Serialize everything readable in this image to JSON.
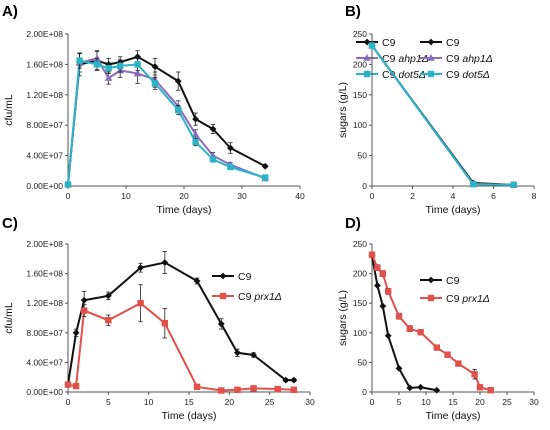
{
  "colors": {
    "black": "#111111",
    "purple": "#8e6bbd",
    "cyan": "#2bb3c8",
    "red": "#e2504c"
  },
  "chart_data": [
    {
      "panel": "A)",
      "type": "line",
      "xlabel": "Time (days)",
      "ylabel": "cfu/mL",
      "xlim": [
        0,
        40
      ],
      "xticks": [
        0,
        10,
        20,
        30,
        40
      ],
      "ylim": [
        0,
        200000000
      ],
      "yticks": [
        0,
        40000000,
        80000000,
        120000000,
        160000000,
        200000000
      ],
      "ytick_labels": [
        "0.00E+00",
        "4.00E+07",
        "8.00E+07",
        "1.20E+08",
        "1.60E+08",
        "2.00E+08"
      ],
      "legend": "top-right",
      "series": [
        {
          "name": "C9",
          "legend_label": "C9",
          "color": "#111111",
          "marker": "diamond",
          "x": [
            0,
            2,
            5,
            7,
            9,
            12,
            15,
            19,
            22,
            25,
            28,
            34
          ],
          "y": [
            2000000,
            160000000,
            165000000,
            160000000,
            163000000,
            170000000,
            157000000,
            138000000,
            88000000,
            75000000,
            50000000,
            26000000
          ],
          "err": [
            0,
            15000000,
            12000000,
            8000000,
            7000000,
            8000000,
            11000000,
            12000000,
            8000000,
            6000000,
            7000000,
            2000000
          ]
        },
        {
          "name": "C9 ahp1Δ",
          "legend_label": "C9 ahp1Δ",
          "color": "#8e6bbd",
          "marker": "triangle",
          "x": [
            0,
            2,
            5,
            7,
            9,
            12,
            15,
            19,
            22,
            25,
            28,
            34
          ],
          "y": [
            2000000,
            162000000,
            168000000,
            142000000,
            152000000,
            148000000,
            140000000,
            105000000,
            68000000,
            40000000,
            28000000,
            10000000
          ],
          "err": [
            0,
            12000000,
            10000000,
            8000000,
            9000000,
            13000000,
            10000000,
            7000000,
            6000000,
            4000000,
            3000000,
            1500000
          ]
        },
        {
          "name": "C9 dot5Δ",
          "legend_label": "C9 dot5Δ",
          "color": "#2bb3c8",
          "marker": "square",
          "x": [
            0,
            2,
            5,
            7,
            9,
            12,
            15,
            19,
            22,
            25,
            28,
            34
          ],
          "y": [
            2000000,
            165000000,
            160000000,
            155000000,
            158000000,
            160000000,
            135000000,
            100000000,
            58000000,
            35000000,
            25000000,
            11000000
          ],
          "err": [
            0,
            10000000,
            8000000,
            7000000,
            8000000,
            8000000,
            8000000,
            6000000,
            5000000,
            3000000,
            2500000,
            1500000
          ]
        }
      ]
    },
    {
      "panel": "B)",
      "type": "line",
      "xlabel": "Time (days)",
      "ylabel": "sugars (g/L)",
      "xlim": [
        0,
        8
      ],
      "xticks": [
        0,
        2,
        4,
        6,
        8
      ],
      "ylim": [
        0,
        250
      ],
      "yticks": [
        0,
        50,
        100,
        150,
        200,
        250
      ],
      "legend": "top-right",
      "series": [
        {
          "name": "C9",
          "legend_label": "C9",
          "color": "#111111",
          "marker": "diamond",
          "x": [
            0,
            5,
            7
          ],
          "y": [
            231,
            5,
            2
          ]
        },
        {
          "name": "C9 ahp1Δ",
          "legend_label": "C9 ahp1Δ",
          "color": "#8e6bbd",
          "marker": "triangle",
          "x": [
            0,
            5,
            7
          ],
          "y": [
            231,
            3,
            2
          ]
        },
        {
          "name": "C9 dot5Δ",
          "legend_label": "C9 dot5Δ",
          "color": "#2bb3c8",
          "marker": "square",
          "x": [
            0,
            5,
            7
          ],
          "y": [
            231,
            3,
            2
          ]
        }
      ]
    },
    {
      "panel": "C)",
      "type": "line",
      "xlabel": "Time (days)",
      "ylabel": "cfu/mL",
      "xlim": [
        0,
        30
      ],
      "xticks": [
        0,
        5,
        10,
        15,
        20,
        25,
        30
      ],
      "ylim": [
        0,
        200000000
      ],
      "yticks": [
        0,
        40000000,
        80000000,
        120000000,
        160000000,
        200000000
      ],
      "ytick_labels": [
        "0.00E+00",
        "4.00E+07",
        "8.00E+07",
        "1.20E+08",
        "1.60E+08",
        "2.00E+08"
      ],
      "legend": "right",
      "series": [
        {
          "name": "C9",
          "legend_label": "C9",
          "color": "#111111",
          "marker": "diamond",
          "x": [
            0,
            1,
            2,
            5,
            9,
            12,
            16,
            19,
            21,
            23,
            27,
            28
          ],
          "y": [
            10000000,
            80000000,
            124000000,
            130000000,
            168000000,
            175000000,
            150000000,
            92000000,
            53000000,
            50000000,
            16000000,
            16000000
          ],
          "err": [
            0,
            5000000,
            12000000,
            5000000,
            6000000,
            15000000,
            4000000,
            7000000,
            5000000,
            3000000,
            2000000,
            2000000
          ]
        },
        {
          "name": "C9 prx1Δ",
          "legend_label": "C9 prx1Δ",
          "color": "#e2504c",
          "marker": "square",
          "x": [
            0,
            1,
            2,
            5,
            9,
            12,
            16,
            19,
            21,
            23,
            26,
            28
          ],
          "y": [
            10000000,
            8000000,
            110000000,
            97000000,
            120000000,
            93000000,
            7000000,
            2000000,
            3000000,
            5000000,
            4000000,
            3000000
          ],
          "err": [
            0,
            2000000,
            8000000,
            7000000,
            25000000,
            20000000,
            2000000,
            1000000,
            1000000,
            1000000,
            1000000,
            1000000
          ]
        }
      ]
    },
    {
      "panel": "D)",
      "type": "line",
      "xlabel": "Time (days)",
      "ylabel": "sugars (g/L)",
      "xlim": [
        0,
        30
      ],
      "xticks": [
        0,
        5,
        10,
        15,
        20,
        25,
        30
      ],
      "ylim": [
        0,
        250
      ],
      "yticks": [
        0,
        50,
        100,
        150,
        200,
        250
      ],
      "legend": "right",
      "series": [
        {
          "name": "C9",
          "legend_label": "C9",
          "color": "#111111",
          "marker": "diamond",
          "x": [
            0,
            1,
            2,
            3,
            5,
            7,
            9,
            12
          ],
          "y": [
            230,
            180,
            145,
            95,
            40,
            7,
            8,
            3
          ]
        },
        {
          "name": "C9 prx1Δ",
          "legend_label": "C9 prx1Δ",
          "color": "#e2504c",
          "marker": "square",
          "x": [
            0,
            1,
            2,
            3,
            5,
            7,
            9,
            12,
            14,
            16,
            19,
            20,
            22
          ],
          "y": [
            232,
            210,
            200,
            170,
            128,
            107,
            101,
            75,
            63,
            48,
            30,
            8,
            3
          ],
          "err": [
            0,
            5,
            5,
            5,
            5,
            5,
            4,
            4,
            4,
            4,
            8,
            3,
            1
          ]
        }
      ]
    }
  ]
}
